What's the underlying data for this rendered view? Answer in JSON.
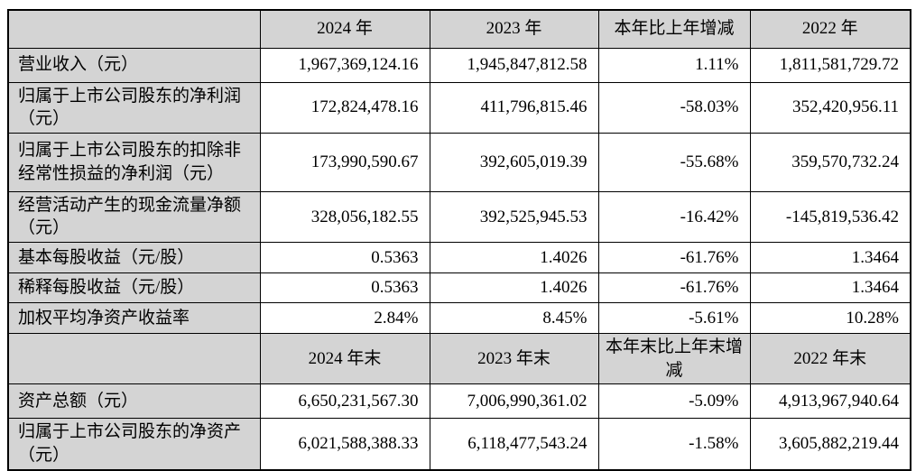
{
  "table": {
    "description": "财务摘要表",
    "colors": {
      "header_background": "#d4d4d4",
      "label_column_background": "#d4d4d4",
      "data_cell_background": "#ffffff",
      "border": "#000000",
      "text": "#000000"
    },
    "sections": [
      {
        "header": [
          "",
          "2024 年",
          "2023 年",
          "本年比上年增减",
          "2022 年"
        ],
        "rows": [
          {
            "label": "营业收入（元）",
            "values": [
              "1,967,369,124.16",
              "1,945,847,812.58",
              "1.11%",
              "1,811,581,729.72"
            ]
          },
          {
            "label": "归属于上市公司股东的净利润（元）",
            "values": [
              "172,824,478.16",
              "411,796,815.46",
              "-58.03%",
              "352,420,956.11"
            ]
          },
          {
            "label": "归属于上市公司股东的扣除非经常性损益的净利润（元）",
            "values": [
              "173,990,590.67",
              "392,605,019.39",
              "-55.68%",
              "359,570,732.24"
            ]
          },
          {
            "label": "经营活动产生的现金流量净额（元）",
            "values": [
              "328,056,182.55",
              "392,525,945.53",
              "-16.42%",
              "-145,819,536.42"
            ]
          },
          {
            "label": "基本每股收益（元/股）",
            "values": [
              "0.5363",
              "1.4026",
              "-61.76%",
              "1.3464"
            ]
          },
          {
            "label": "稀释每股收益（元/股）",
            "values": [
              "0.5363",
              "1.4026",
              "-61.76%",
              "1.3464"
            ]
          },
          {
            "label": "加权平均净资产收益率",
            "values": [
              "2.84%",
              "8.45%",
              "-5.61%",
              "10.28%"
            ]
          }
        ]
      },
      {
        "header": [
          "",
          "2024 年末",
          "2023 年末",
          "本年末比上年末增减",
          "2022 年末"
        ],
        "rows": [
          {
            "label": "资产总额（元）",
            "values": [
              "6,650,231,567.30",
              "7,006,990,361.02",
              "-5.09%",
              "4,913,967,940.64"
            ]
          },
          {
            "label": "归属于上市公司股东的净资产（元）",
            "values": [
              "6,021,588,388.33",
              "6,118,477,543.24",
              "-1.58%",
              "3,605,882,219.44"
            ]
          }
        ]
      }
    ]
  }
}
